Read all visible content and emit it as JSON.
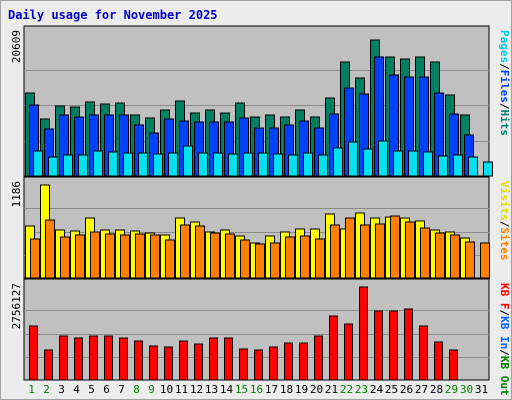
{
  "chart_data": {
    "type": "bar",
    "title": "Daily usage for November 2025",
    "categories": [
      "1",
      "2",
      "3",
      "4",
      "5",
      "6",
      "7",
      "8",
      "9",
      "10",
      "11",
      "12",
      "13",
      "14",
      "15",
      "16",
      "17",
      "18",
      "19",
      "20",
      "21",
      "22",
      "23",
      "24",
      "25",
      "26",
      "27",
      "28",
      "29",
      "30",
      "31"
    ],
    "weekend_days": [
      "1",
      "2",
      "8",
      "9",
      "15",
      "16",
      "22",
      "23",
      "29",
      "30"
    ],
    "colors": {
      "background": "#ececec",
      "plot_bg": "#c0c0c0",
      "grid": "#8a8a8a",
      "weekday_label": "#000000",
      "weekend_label": "#008000",
      "legend_sep": "#000000"
    },
    "panels": [
      {
        "id": "requests",
        "max_label": "20609",
        "ylim": [
          0,
          20609
        ],
        "legend": [
          {
            "text": "Pages",
            "color": "#00c8e0"
          },
          {
            "text": "/",
            "color": "#000000"
          },
          {
            "text": "Files",
            "color": "#0040ff"
          },
          {
            "text": "/",
            "color": "#000000"
          },
          {
            "text": "Hits",
            "color": "#008070"
          }
        ],
        "series": [
          {
            "name": "Hits",
            "color": "#008060",
            "values": [
              12000,
              8300,
              10100,
              10000,
              10800,
              10500,
              10600,
              8900,
              8400,
              9600,
              10900,
              9100,
              9600,
              9100,
              10600,
              8600,
              8800,
              8500,
              9600,
              8600,
              11300,
              16600,
              14200,
              19800,
              17300,
              17000,
              17200,
              16500,
              11700,
              8800,
              null
            ]
          },
          {
            "name": "Files",
            "color": "#0040ff",
            "values": [
              10300,
              6800,
              8800,
              8600,
              8800,
              8800,
              8800,
              7400,
              6200,
              8300,
              8000,
              7800,
              7900,
              7900,
              8400,
              6900,
              7000,
              7400,
              8000,
              7000,
              9000,
              12800,
              11900,
              17300,
              14700,
              14300,
              14300,
              12000,
              9000,
              6000,
              null
            ]
          },
          {
            "name": "Pages",
            "color": "#00e0f0",
            "values": [
              3600,
              2700,
              3000,
              3000,
              3600,
              3500,
              3400,
              3300,
              3200,
              3400,
              4300,
              3300,
              3300,
              3200,
              3300,
              3300,
              3200,
              3100,
              3300,
              3000,
              4100,
              4900,
              3900,
              5100,
              3700,
              3600,
              3500,
              2900,
              3000,
              2700,
              2100
            ]
          }
        ]
      },
      {
        "id": "visitors",
        "max_label": "1186",
        "ylim": [
          0,
          1186
        ],
        "legend": [
          {
            "text": "Visits",
            "color": "#e0e000"
          },
          {
            "text": "/",
            "color": "#000000"
          },
          {
            "text": "Sites",
            "color": "#ff8000"
          }
        ],
        "series": [
          {
            "name": "Visits",
            "color": "#ffff00",
            "values": [
              660,
              1186,
              610,
              600,
              760,
              610,
              610,
              600,
              580,
              550,
              760,
              710,
              590,
              610,
              530,
              450,
              530,
              590,
              620,
              630,
              820,
              630,
              830,
              760,
              780,
              760,
              730,
              610,
              590,
              510,
              null
            ]
          },
          {
            "name": "Sites",
            "color": "#ff8000",
            "values": [
              500,
              740,
              520,
              550,
              590,
              560,
              550,
              560,
              550,
              490,
              680,
              660,
              570,
              560,
              490,
              430,
              450,
              520,
              540,
              500,
              680,
              760,
              680,
              690,
              790,
              720,
              640,
              570,
              550,
              460,
              440
            ]
          }
        ]
      },
      {
        "id": "traffic",
        "max_label": "2756127",
        "ylim": [
          0,
          2756127
        ],
        "legend": [
          {
            "text": "KB F",
            "color": "#ff0000"
          },
          {
            "text": "/",
            "color": "#000000"
          },
          {
            "text": "KB In",
            "color": "#0060ff"
          },
          {
            "text": "/",
            "color": "#000000"
          },
          {
            "text": "KB Out",
            "color": "#008000"
          }
        ],
        "series": [
          {
            "name": "KB F",
            "color": "#ff0000",
            "values": [
              1600000,
              900000,
              1300000,
              1250000,
              1300000,
              1300000,
              1250000,
              1150000,
              1000000,
              980000,
              1150000,
              1080000,
              1250000,
              1250000,
              930000,
              890000,
              990000,
              1100000,
              1110000,
              1290000,
              1900000,
              1650000,
              2756127,
              2050000,
              2050000,
              2100000,
              1600000,
              1120000,
              880000,
              null,
              null
            ]
          }
        ]
      }
    ]
  }
}
